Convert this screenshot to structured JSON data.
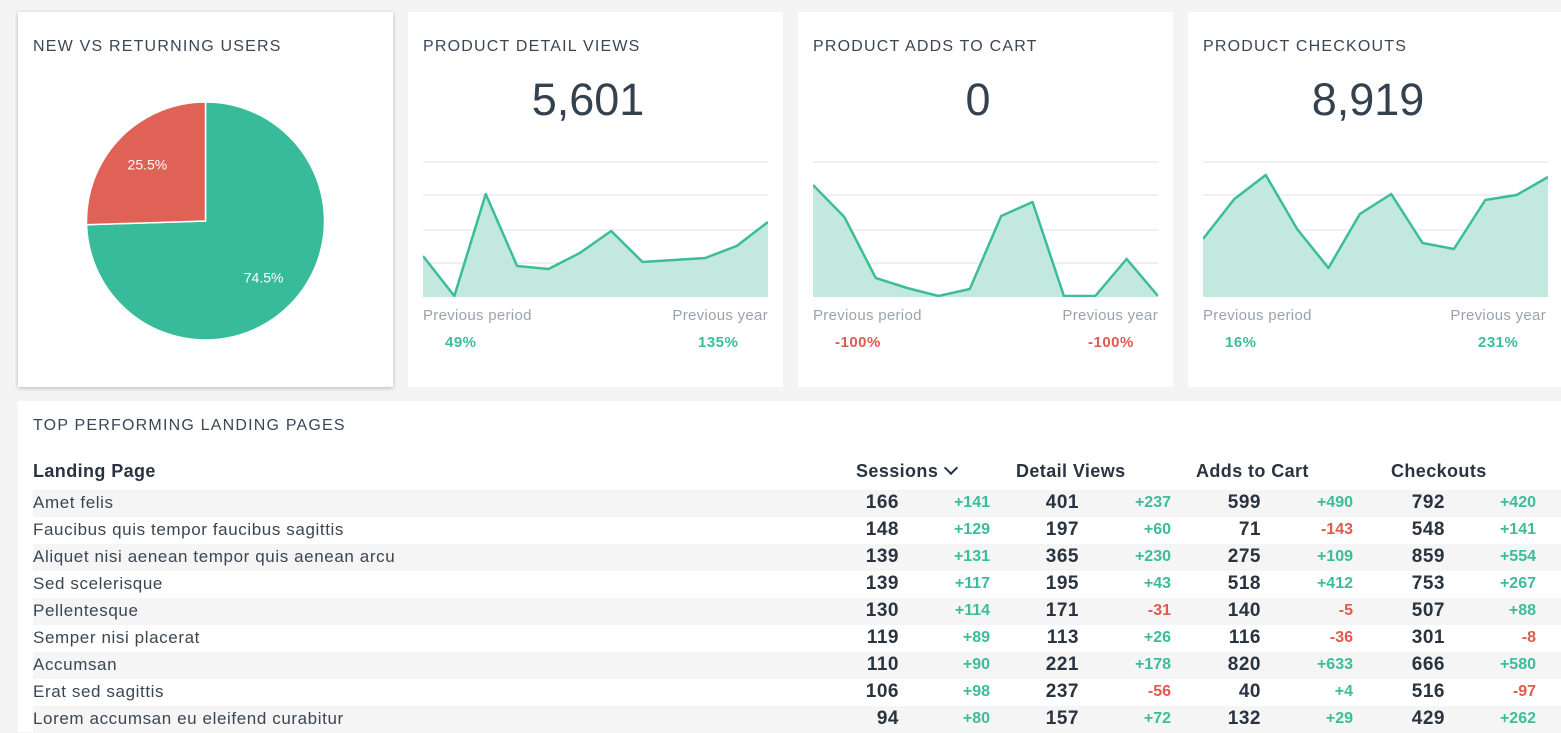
{
  "colors": {
    "teal": "#3bbd99",
    "red": "#e05a4f",
    "fill": "#c3e9de",
    "grid": "#e2e2e2"
  },
  "pie": {
    "title": "NEW VS RETURNING USERS",
    "chart_data": {
      "type": "pie",
      "slices": [
        {
          "label": "74.5%",
          "value": 74.5,
          "color": "#38bb9b"
        },
        {
          "label": "25.5%",
          "value": 25.5,
          "color": "#e06155"
        }
      ]
    }
  },
  "kpis": [
    {
      "title": "PRODUCT DETAIL VIEWS",
      "value": "5,601",
      "prev_period_label": "Previous period",
      "prev_year_label": "Previous year",
      "prev_period": "49%",
      "prev_year": "135%",
      "prev_period_sign": "pos",
      "prev_year_sign": "pos",
      "chart_data": {
        "type": "area",
        "values": [
          41,
          1,
          103,
          31,
          28,
          44,
          66,
          35,
          37,
          39,
          51,
          75
        ]
      }
    },
    {
      "title": "PRODUCT ADDS TO CART",
      "value": "0",
      "prev_period_label": "Previous period",
      "prev_year_label": "Previous year",
      "prev_period": "-100%",
      "prev_year": "-100%",
      "prev_period_sign": "neg",
      "prev_year_sign": "neg",
      "chart_data": {
        "type": "area",
        "values": [
          112,
          80,
          19,
          9,
          1,
          8,
          81,
          95,
          1,
          1,
          38,
          1
        ]
      }
    },
    {
      "title": "PRODUCT CHECKOUTS",
      "value": "8,919",
      "prev_period_label": "Previous period",
      "prev_year_label": "Previous year",
      "prev_period": "16%",
      "prev_year": "231%",
      "prev_period_sign": "pos",
      "prev_year_sign": "pos",
      "chart_data": {
        "type": "area",
        "values": [
          58,
          98,
          122,
          68,
          29,
          83,
          103,
          54,
          48,
          97,
          102,
          120
        ]
      }
    }
  ],
  "table": {
    "title": "TOP PERFORMING LANDING PAGES",
    "headers": {
      "page": "Landing Page",
      "sessions": "Sessions",
      "views": "Detail Views",
      "cart": "Adds to Cart",
      "checkouts": "Checkouts"
    },
    "rows": [
      {
        "page": "Amet felis",
        "s": "166",
        "sd": "+141",
        "v": "401",
        "vd": "+237",
        "c": "599",
        "cd": "+490",
        "k": "792",
        "kd": "+420"
      },
      {
        "page": "Faucibus quis tempor faucibus sagittis",
        "s": "148",
        "sd": "+129",
        "v": "197",
        "vd": "+60",
        "c": "71",
        "cd": "-143",
        "k": "548",
        "kd": "+141"
      },
      {
        "page": "Aliquet nisi aenean tempor quis aenean arcu",
        "s": "139",
        "sd": "+131",
        "v": "365",
        "vd": "+230",
        "c": "275",
        "cd": "+109",
        "k": "859",
        "kd": "+554"
      },
      {
        "page": "Sed scelerisque",
        "s": "139",
        "sd": "+117",
        "v": "195",
        "vd": "+43",
        "c": "518",
        "cd": "+412",
        "k": "753",
        "kd": "+267"
      },
      {
        "page": "Pellentesque",
        "s": "130",
        "sd": "+114",
        "v": "171",
        "vd": "-31",
        "c": "140",
        "cd": "-5",
        "k": "507",
        "kd": "+88"
      },
      {
        "page": "Semper nisi placerat",
        "s": "119",
        "sd": "+89",
        "v": "113",
        "vd": "+26",
        "c": "116",
        "cd": "-36",
        "k": "301",
        "kd": "-8"
      },
      {
        "page": "Accumsan",
        "s": "110",
        "sd": "+90",
        "v": "221",
        "vd": "+178",
        "c": "820",
        "cd": "+633",
        "k": "666",
        "kd": "+580"
      },
      {
        "page": "Erat sed sagittis",
        "s": "106",
        "sd": "+98",
        "v": "237",
        "vd": "-56",
        "c": "40",
        "cd": "+4",
        "k": "516",
        "kd": "-97"
      },
      {
        "page": "Lorem accumsan eu eleifend curabitur",
        "s": "94",
        "sd": "+80",
        "v": "157",
        "vd": "+72",
        "c": "132",
        "cd": "+29",
        "k": "429",
        "kd": "+262"
      }
    ]
  }
}
